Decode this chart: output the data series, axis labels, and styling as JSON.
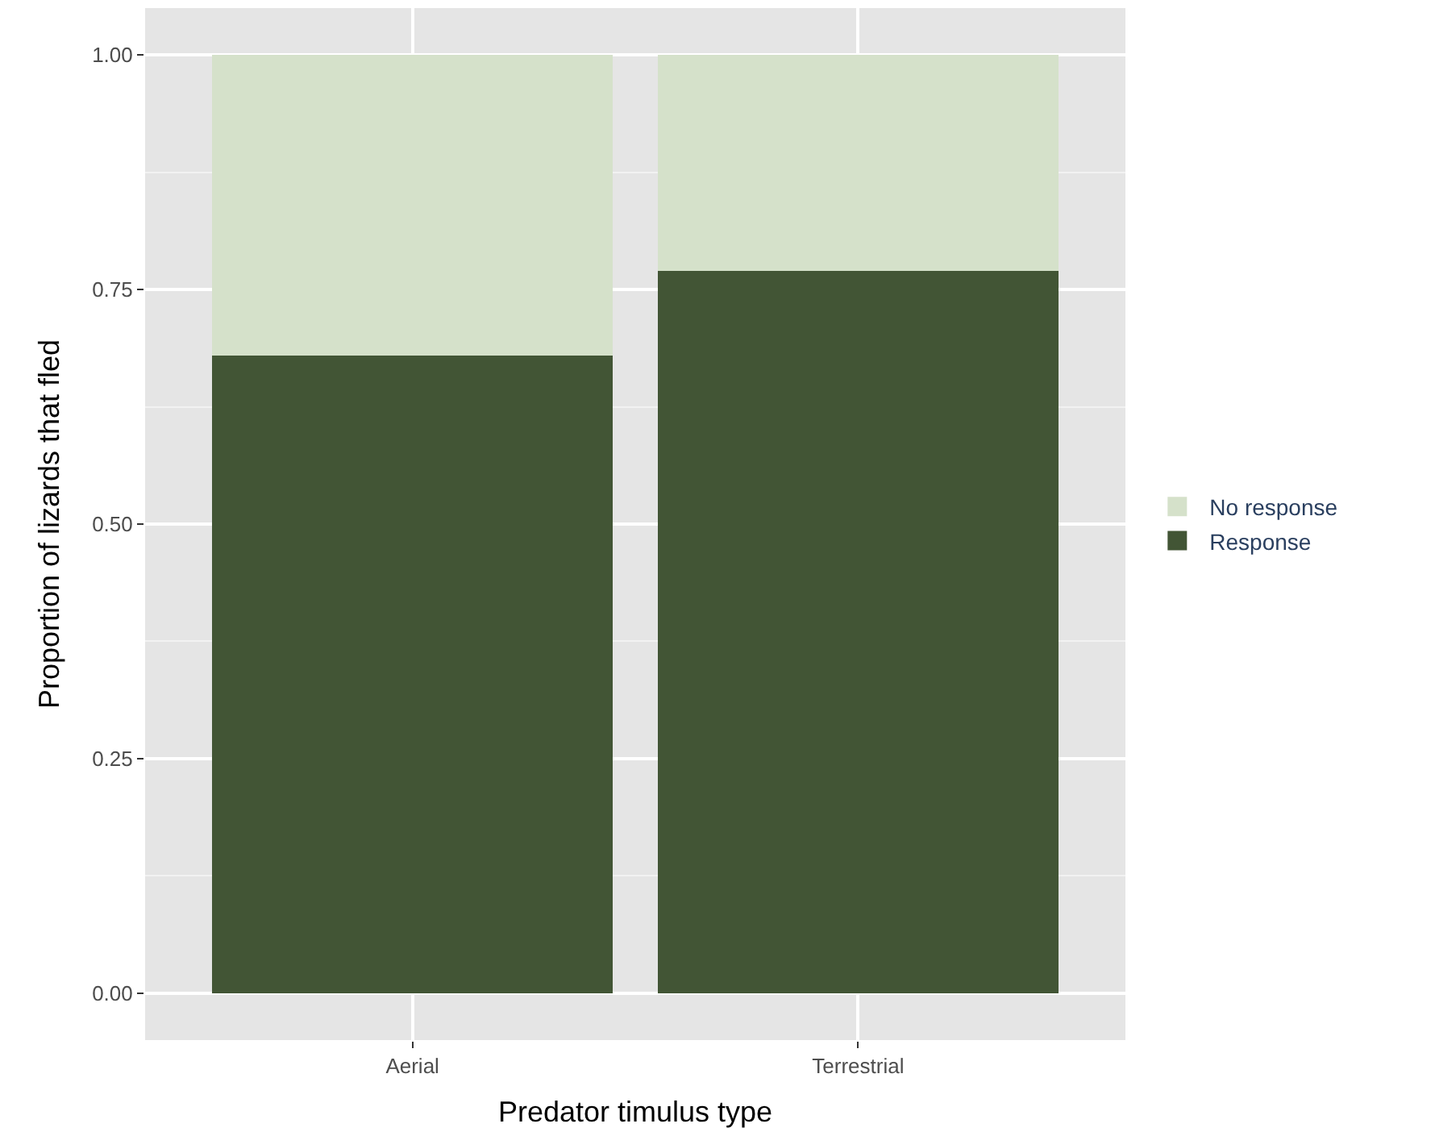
{
  "chart_data": {
    "type": "bar",
    "stacked": true,
    "xlabel": "Predator timulus type",
    "ylabel": "Proportion of lizards that fled",
    "categories": [
      "Aerial",
      "Terrestrial"
    ],
    "series": [
      {
        "name": "Response",
        "color": "#425535",
        "values": [
          0.68,
          0.77
        ]
      },
      {
        "name": "No response",
        "color": "#d5e1ca",
        "values": [
          0.32,
          0.23
        ]
      }
    ],
    "ylim": [
      -0.05,
      1.05
    ],
    "yticks": [
      {
        "value": 0,
        "label": "0.00"
      },
      {
        "value": 0.25,
        "label": "0.25"
      },
      {
        "value": 0.5,
        "label": "0.50"
      },
      {
        "value": 0.75,
        "label": "0.75"
      },
      {
        "value": 1,
        "label": "1.00"
      }
    ],
    "grid": true,
    "legend": "right"
  }
}
